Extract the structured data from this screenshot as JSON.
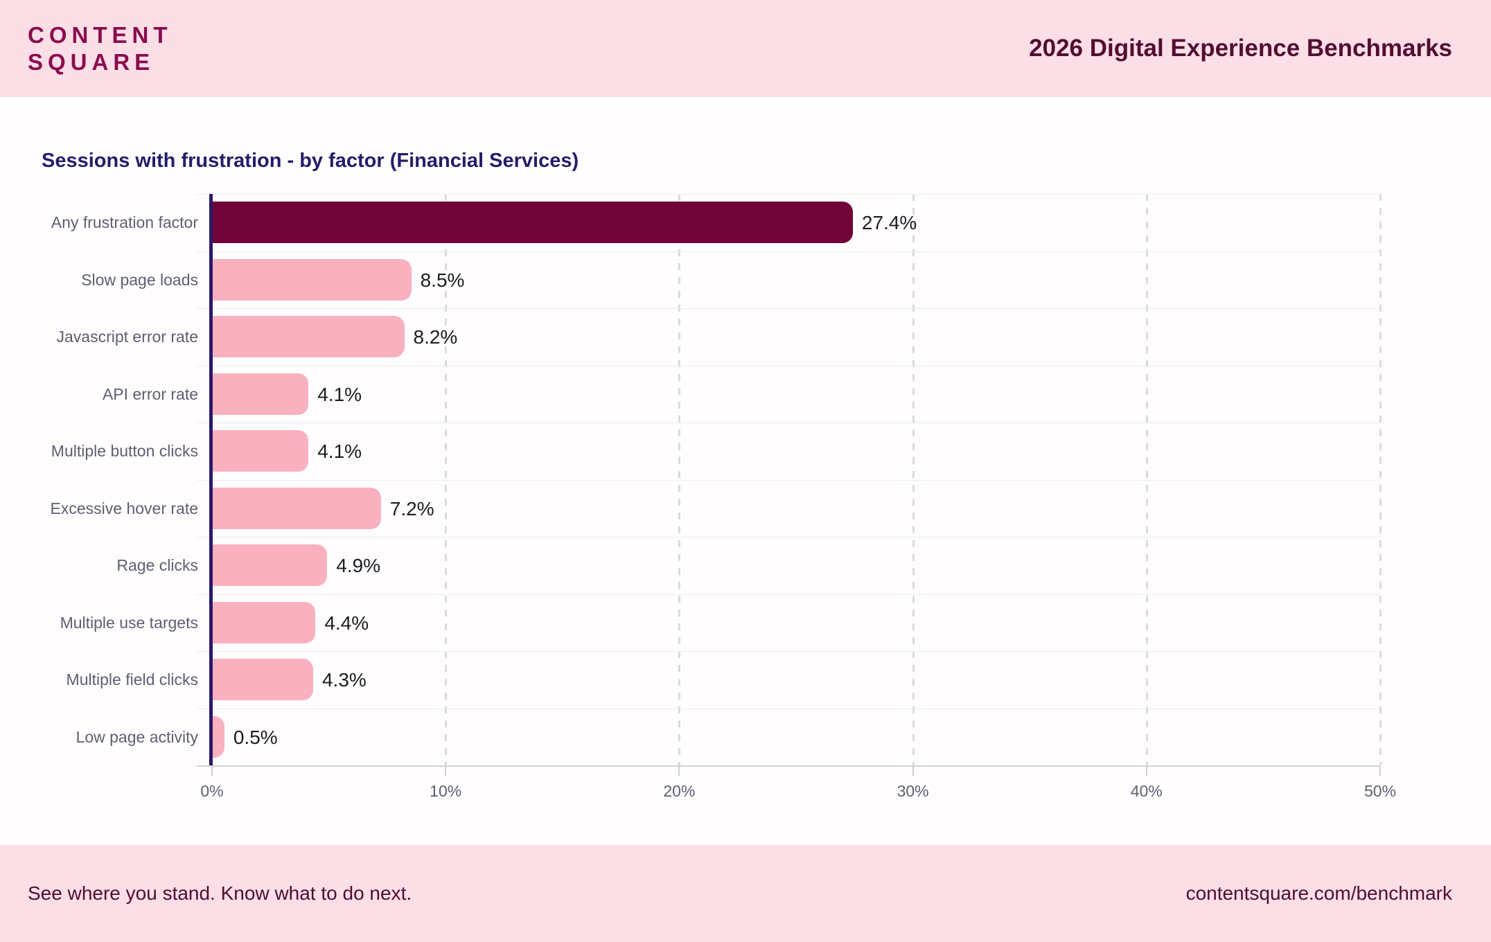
{
  "header": {
    "logo_line1": "CONTENT",
    "logo_line2": "SQUARE",
    "title": "2026 Digital Experience Benchmarks"
  },
  "chart_data": {
    "type": "bar",
    "orientation": "horizontal",
    "title": "Sessions with frustration - by factor (Financial Services)",
    "categories": [
      "Any frustration factor",
      "Slow page loads",
      "Javascript error rate",
      "API error rate",
      "Multiple button clicks",
      "Excessive hover rate",
      "Rage clicks",
      "Multiple use targets",
      "Multiple field clicks",
      "Low page activity"
    ],
    "values": [
      27.4,
      8.5,
      8.2,
      4.1,
      4.1,
      7.2,
      4.9,
      4.4,
      4.3,
      0.5
    ],
    "value_labels": [
      "27.4%",
      "8.5%",
      "8.2%",
      "4.1%",
      "4.1%",
      "7.2%",
      "4.9%",
      "4.4%",
      "4.3%",
      "0.5%"
    ],
    "xlabel": "",
    "ylabel": "",
    "xlim": [
      0,
      50
    ],
    "x_ticks": [
      "0%",
      "10%",
      "20%",
      "30%",
      "40%",
      "50%"
    ],
    "grid": "vertical-dashed",
    "legend": null,
    "highlight_index": 0,
    "colors": {
      "highlight_bar": "#700338",
      "bar": "#f9b1c0",
      "y_axis": "#2a1a66",
      "title": "#231d6a",
      "labels": "#605d72",
      "values": "#1d1b22",
      "band_background": "#fcdee7",
      "brand_text": "#8a0c4d"
    }
  },
  "footer": {
    "left": "See where you stand. Know what to do next.",
    "right": "contentsquare.com/benchmark"
  }
}
